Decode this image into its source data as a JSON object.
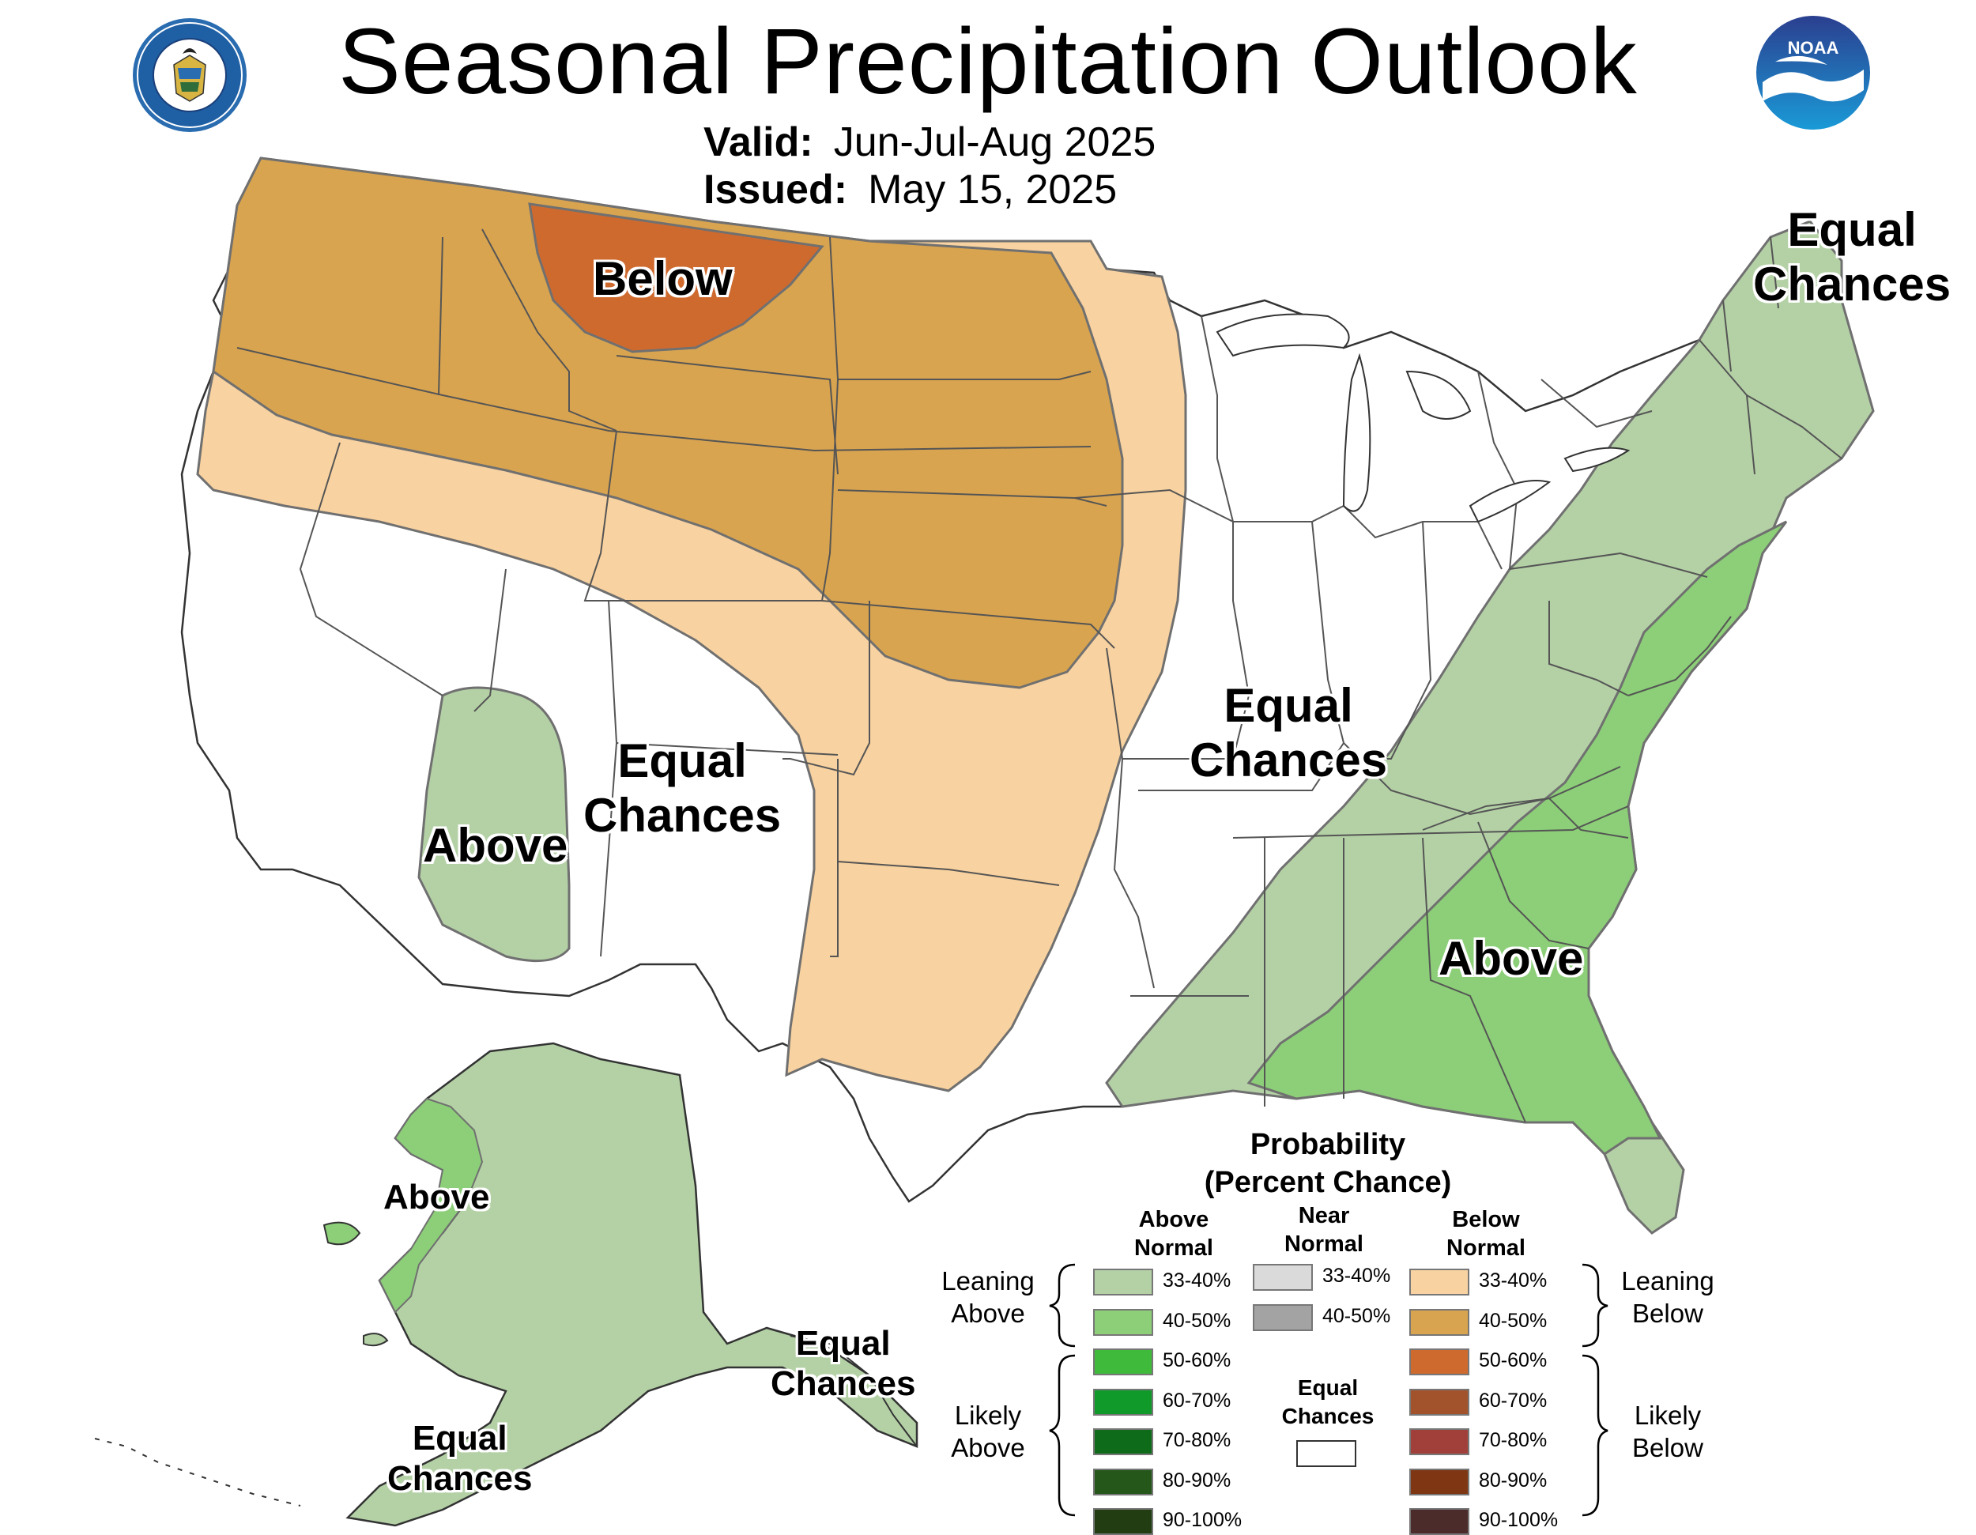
{
  "title": "Seasonal Precipitation Outlook",
  "valid": {
    "key": "Valid:",
    "value": "Jun-Jul-Aug 2025"
  },
  "issued": {
    "key": "Issued:",
    "value": "May 15, 2025"
  },
  "logos": {
    "left": {
      "icon": "department-of-commerce-seal-icon",
      "ring_text": "DEPARTMENT OF COMMERCE · UNITED STATES OF AMERICA"
    },
    "right": {
      "icon": "noaa-logo-icon",
      "text": "NOAA"
    }
  },
  "map_labels": {
    "below_north": "Below",
    "above_southwest": "Above",
    "ec_west": [
      "Equal",
      "Chances"
    ],
    "ec_central": [
      "Equal",
      "Chances"
    ],
    "ec_northeast": [
      "Equal",
      "Chances"
    ],
    "above_southeast": "Above",
    "above_alaska": "Above",
    "ec_alaska_south": [
      "Equal",
      "Chances"
    ],
    "ec_alaska_southeast": [
      "Equal",
      "Chances"
    ]
  },
  "colors": {
    "above_33_40": "#b4d1a6",
    "above_40_50": "#8ccf78",
    "above_50_60": "#3fba3a",
    "above_60_70": "#0f9a2a",
    "above_70_80": "#0e6b1a",
    "above_80_90": "#25571a",
    "above_90_100": "#223d12",
    "near_33_40": "#dadada",
    "near_40_50": "#a3a3a3",
    "below_33_40": "#f8d2a0",
    "below_40_50": "#d9a44f",
    "below_50_60": "#cf6a2f",
    "below_60_70": "#a2532c",
    "below_70_80": "#a1403a",
    "below_80_90": "#7f3713",
    "below_90_100": "#4c2b2b",
    "state_border": "#555555",
    "contour": "#707070"
  },
  "legend": {
    "title_line1": "Probability",
    "title_line2": "(Percent Chance)",
    "above_header": [
      "Above",
      "Normal"
    ],
    "near_header": [
      "Near",
      "Normal"
    ],
    "below_header": [
      "Below",
      "Normal"
    ],
    "leaning_above": [
      "Leaning",
      "Above"
    ],
    "likely_above": [
      "Likely",
      "Above"
    ],
    "leaning_below": [
      "Leaning",
      "Below"
    ],
    "likely_below": [
      "Likely",
      "Below"
    ],
    "ec_label": [
      "Equal",
      "Chances"
    ],
    "above_items": [
      "33-40%",
      "40-50%",
      "50-60%",
      "60-70%",
      "70-80%",
      "80-90%",
      "90-100%"
    ],
    "near_items": [
      "33-40%",
      "40-50%"
    ],
    "below_items": [
      "33-40%",
      "40-50%",
      "50-60%",
      "60-70%",
      "70-80%",
      "80-90%",
      "90-100%"
    ]
  }
}
